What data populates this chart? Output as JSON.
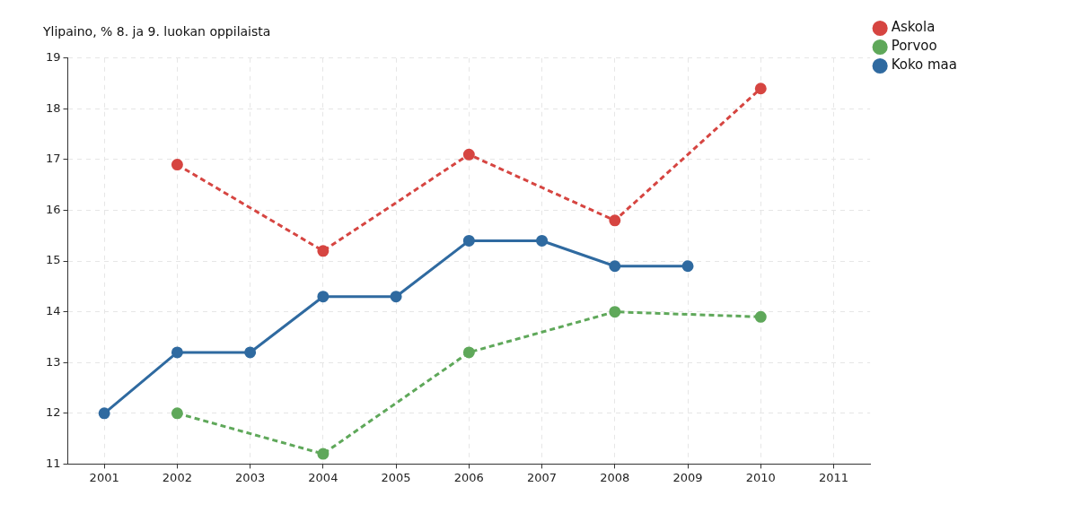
{
  "chart_data": {
    "type": "line",
    "title": "Ylipaino, % 8. ja 9. luokan oppilaista",
    "xlim": [
      2000.5,
      2011.5
    ],
    "xticks": [
      2001,
      2002,
      2003,
      2004,
      2005,
      2006,
      2007,
      2008,
      2009,
      2010,
      2011
    ],
    "ylim": [
      11,
      19
    ],
    "yticks": [
      11,
      12,
      13,
      14,
      15,
      16,
      17,
      18,
      19
    ],
    "grid": true,
    "legend": "top right",
    "marker": "circle",
    "series": [
      {
        "name": "Askola",
        "color": "#d64541",
        "line_style": "dashed",
        "x": [
          2002,
          2004,
          2006,
          2008,
          2010
        ],
        "values": [
          16.9,
          15.2,
          17.1,
          15.8,
          18.4
        ]
      },
      {
        "name": "Porvoo",
        "color": "#5fa85a",
        "line_style": "dashed",
        "x": [
          2002,
          2004,
          2006,
          2008,
          2010
        ],
        "values": [
          12.0,
          11.2,
          13.2,
          14.0,
          13.9
        ]
      },
      {
        "name": "Koko maa",
        "color": "#2f6aa0",
        "line_style": "solid",
        "x": [
          2001,
          2002,
          2003,
          2004,
          2005,
          2006,
          2007,
          2008,
          2009
        ],
        "values": [
          12.0,
          13.2,
          13.2,
          14.3,
          14.3,
          15.4,
          15.4,
          14.9,
          14.9
        ]
      }
    ]
  }
}
